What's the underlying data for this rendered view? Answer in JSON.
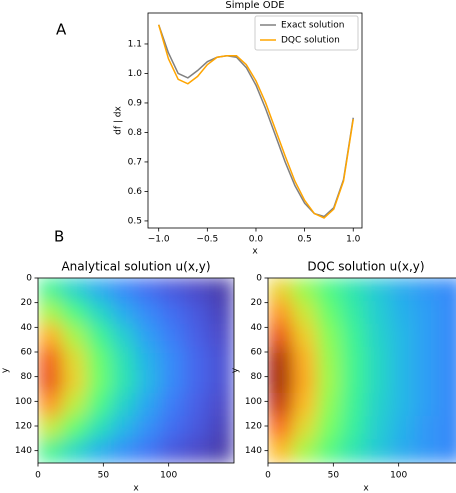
{
  "panel_labels": [
    "A",
    "B"
  ],
  "chart_data": [
    {
      "type": "line",
      "title": "Simple ODE",
      "xlabel": "x",
      "ylabel": "df | dx",
      "x": [
        -1.0,
        -0.9,
        -0.8,
        -0.7,
        -0.6,
        -0.5,
        -0.4,
        -0.3,
        -0.2,
        -0.1,
        0.0,
        0.1,
        0.2,
        0.3,
        0.4,
        0.5,
        0.6,
        0.7,
        0.8,
        0.9,
        1.0
      ],
      "series": [
        {
          "name": "Exact solution",
          "color": "#808080",
          "values": [
            1.165,
            1.07,
            1.0,
            0.985,
            1.01,
            1.04,
            1.055,
            1.06,
            1.055,
            1.02,
            0.96,
            0.88,
            0.79,
            0.7,
            0.62,
            0.56,
            0.525,
            0.515,
            0.545,
            0.64,
            0.85
          ]
        },
        {
          "name": "DQC solution",
          "color": "#ffa500",
          "values": [
            1.165,
            1.05,
            0.98,
            0.965,
            0.99,
            1.03,
            1.055,
            1.06,
            1.06,
            1.03,
            0.975,
            0.9,
            0.81,
            0.72,
            0.635,
            0.57,
            0.525,
            0.51,
            0.54,
            0.635,
            0.845
          ]
        }
      ],
      "xlim": [
        -1.11,
        1.09
      ],
      "xticks": [
        {
          "value": -1,
          "label": "−1.0"
        },
        {
          "value": -0.5,
          "label": "−0.5"
        },
        {
          "value": 0,
          "label": "0.0"
        },
        {
          "value": 0.5,
          "label": "0.5"
        },
        {
          "value": 1,
          "label": "1.0"
        }
      ],
      "ylim": [
        0.476,
        1.205
      ],
      "yticks": [
        0.5,
        0.6,
        0.7,
        0.8,
        0.9,
        {
          "value": 1,
          "label": "1.0"
        },
        1.1
      ],
      "legend": "upper right"
    },
    {
      "type": "heatmap",
      "title": "Analytical solution u(x,y)",
      "xlabel": "x",
      "ylabel": "y",
      "colormap": "turbo",
      "xlim": [
        0,
        150
      ],
      "ylim": [
        0,
        150
      ],
      "xticks": [
        0,
        50,
        100
      ],
      "yticks": [
        0,
        20,
        40,
        60,
        80,
        100,
        120,
        140
      ],
      "z": [
        [
          0.38,
          0.29,
          0.22,
          0.17,
          0.13,
          0.1,
          0.08,
          0.06
        ],
        [
          0.52,
          0.4,
          0.3,
          0.22,
          0.17,
          0.13,
          0.1,
          0.07
        ],
        [
          0.68,
          0.52,
          0.38,
          0.28,
          0.2,
          0.15,
          0.11,
          0.08
        ],
        [
          0.8,
          0.6,
          0.44,
          0.32,
          0.23,
          0.17,
          0.12,
          0.09
        ],
        [
          0.82,
          0.62,
          0.45,
          0.33,
          0.24,
          0.17,
          0.12,
          0.09
        ],
        [
          0.72,
          0.55,
          0.4,
          0.29,
          0.21,
          0.15,
          0.11,
          0.08
        ],
        [
          0.56,
          0.43,
          0.32,
          0.24,
          0.18,
          0.13,
          0.1,
          0.07
        ],
        [
          0.38,
          0.3,
          0.23,
          0.18,
          0.14,
          0.1,
          0.08,
          0.06
        ]
      ]
    },
    {
      "type": "heatmap",
      "title": "DQC solution u(x,y)",
      "xlabel": "x",
      "ylabel": "y",
      "colormap": "turbo",
      "xlim": [
        0,
        150
      ],
      "ylim": [
        0,
        150
      ],
      "xticks": [
        0,
        50,
        100
      ],
      "yticks": [
        0,
        20,
        40,
        60,
        80,
        100,
        120,
        140
      ],
      "z": [
        [
          0.62,
          0.5,
          0.4,
          0.33,
          0.27,
          0.22,
          0.19,
          0.17
        ],
        [
          0.72,
          0.57,
          0.44,
          0.35,
          0.28,
          0.23,
          0.2,
          0.17
        ],
        [
          0.82,
          0.63,
          0.48,
          0.37,
          0.29,
          0.24,
          0.2,
          0.17
        ],
        [
          0.92,
          0.68,
          0.5,
          0.38,
          0.3,
          0.24,
          0.2,
          0.17
        ],
        [
          0.94,
          0.69,
          0.51,
          0.38,
          0.3,
          0.24,
          0.2,
          0.17
        ],
        [
          0.88,
          0.66,
          0.49,
          0.37,
          0.29,
          0.24,
          0.2,
          0.17
        ],
        [
          0.78,
          0.6,
          0.46,
          0.36,
          0.28,
          0.23,
          0.19,
          0.17
        ],
        [
          0.66,
          0.52,
          0.41,
          0.33,
          0.27,
          0.22,
          0.19,
          0.17
        ]
      ]
    }
  ]
}
